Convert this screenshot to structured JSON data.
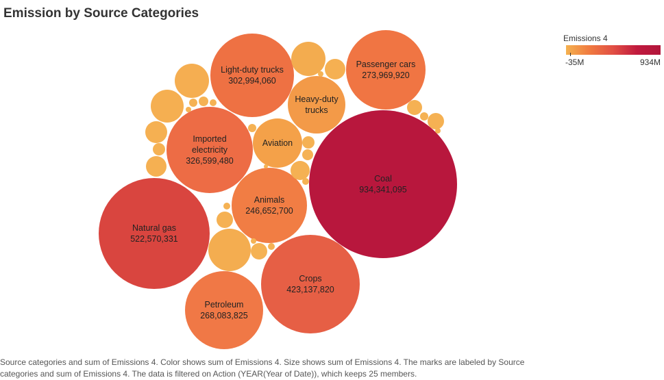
{
  "title": "Emission by Source Categories",
  "legend": {
    "title": "Emissions 4",
    "min_label": "-35M",
    "max_label": "934M"
  },
  "caption": "Source categories and sum of Emissions 4.  Color shows sum of Emissions 4.  Size shows sum of Emissions 4.  The marks are labeled by Source categories and sum of Emissions 4. The data is filtered on Action (YEAR(Year of Date)), which keeps 25 members.",
  "chart_data": {
    "type": "packed-bubble",
    "title": "Emission by Source Categories",
    "color_scale": {
      "min": -35000000,
      "max": 934000000
    },
    "bubbles": [
      {
        "label": "Coal",
        "value": 934341095,
        "value_text": "934,341,095",
        "color": "#b8173d"
      },
      {
        "label": "Natural gas",
        "value": 522570331,
        "value_text": "522,570,331",
        "color": "#d9453f"
      },
      {
        "label": "Crops",
        "value": 423137820,
        "value_text": "423,137,820",
        "color": "#e65f45"
      },
      {
        "label": "Imported electricity",
        "value": 326599480,
        "value_text": "326,599,480",
        "color": "#ed6c45"
      },
      {
        "label": "Light-duty trucks",
        "value": 302994060,
        "value_text": "302,994,060",
        "color": "#ee7143"
      },
      {
        "label": "Passenger cars",
        "value": 273969920,
        "value_text": "273,969,920",
        "color": "#f07543"
      },
      {
        "label": "Petroleum",
        "value": 268083825,
        "value_text": "268,083,825",
        "color": "#f07846"
      },
      {
        "label": "Animals",
        "value": 246652700,
        "value_text": "246,652,700",
        "color": "#f17d44"
      },
      {
        "label": "Heavy-duty trucks",
        "value_text": "",
        "color": "#f39a48"
      },
      {
        "label": "Aviation",
        "value_text": "",
        "color": "#f4a149"
      },
      {
        "label": "",
        "value_text": "",
        "color": "#f3ac4f"
      },
      {
        "label": "",
        "value_text": "",
        "color": "#f4ad50"
      },
      {
        "label": "",
        "value_text": "",
        "color": "#f5ae51"
      },
      {
        "label": "",
        "value_text": "",
        "color": "#f5af51"
      },
      {
        "label": "",
        "value_text": "",
        "color": "#f5b052"
      },
      {
        "label": "",
        "value_text": "",
        "color": "#f5b052"
      },
      {
        "label": "",
        "value_text": "",
        "color": "#f5b052"
      },
      {
        "label": "",
        "value_text": "",
        "color": "#f5b153"
      },
      {
        "label": "",
        "value_text": "",
        "color": "#f5b153"
      },
      {
        "label": "",
        "value_text": "",
        "color": "#f5b153"
      },
      {
        "label": "",
        "value_text": "",
        "color": "#f5b153"
      },
      {
        "label": "",
        "value_text": "",
        "color": "#f5b153"
      },
      {
        "label": "",
        "value_text": "",
        "color": "#f5b153"
      },
      {
        "label": "",
        "value_text": "",
        "color": "#f5b254"
      },
      {
        "label": "",
        "value_text": "",
        "color": "#f5b254"
      }
    ]
  }
}
